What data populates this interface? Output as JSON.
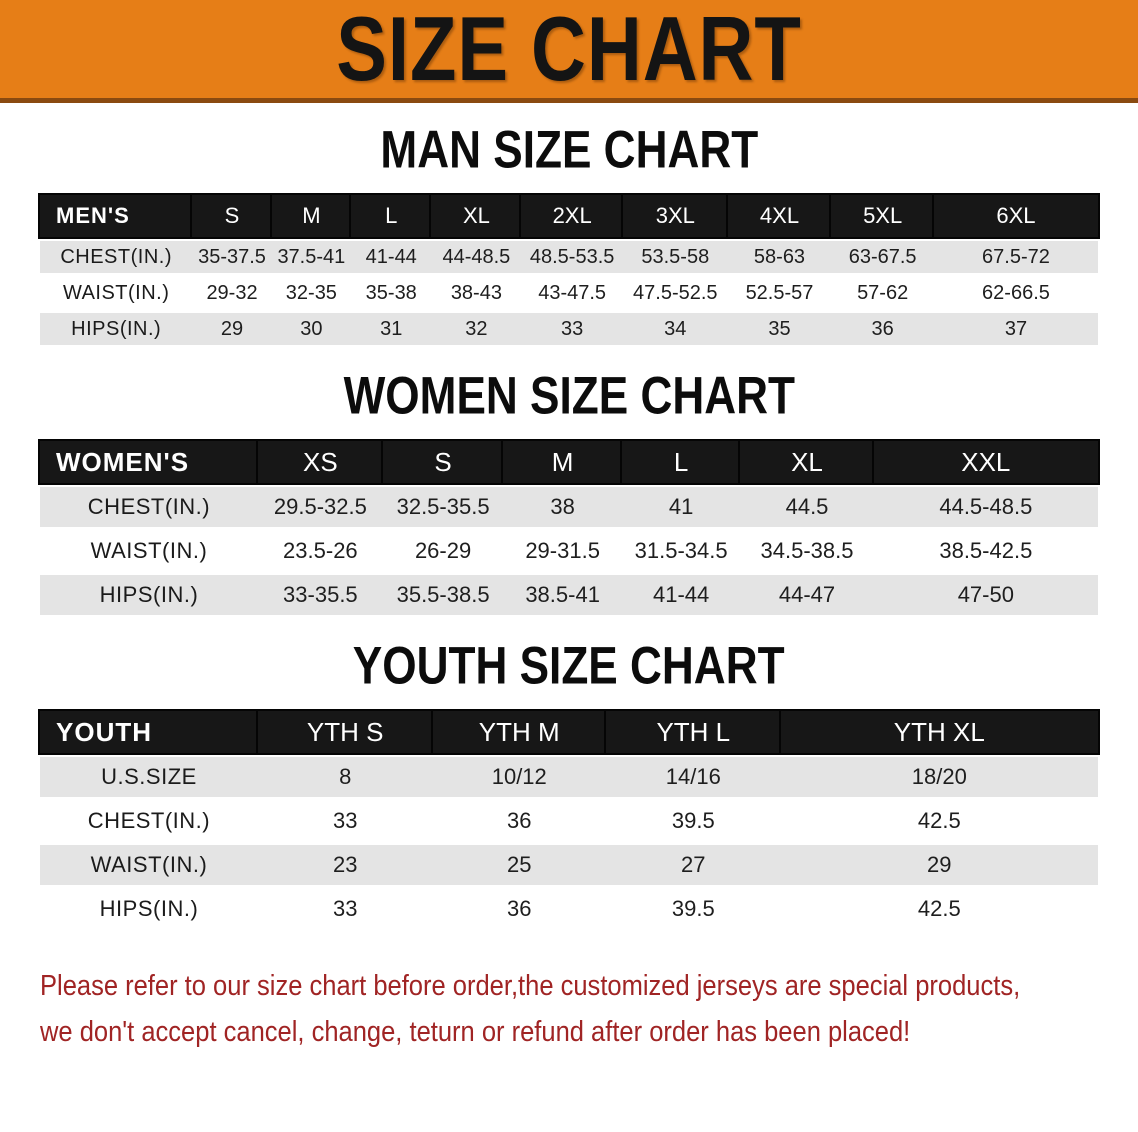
{
  "banner": {
    "title": "SIZE CHART"
  },
  "sections": [
    {
      "heading": "MAN SIZE CHART",
      "table": {
        "header_label": "MEN'S",
        "columns": [
          "S",
          "M",
          "L",
          "XL",
          "2XL",
          "3XL",
          "4XL",
          "5XL",
          "6XL"
        ],
        "rows": [
          {
            "label": "CHEST(IN.)",
            "values": [
              "35-37.5",
              "37.5-41",
              "41-44",
              "44-48.5",
              "48.5-53.5",
              "53.5-58",
              "58-63",
              "63-67.5",
              "67.5-72"
            ]
          },
          {
            "label": "WAIST(IN.)",
            "values": [
              "29-32",
              "32-35",
              "35-38",
              "38-43",
              "43-47.5",
              "47.5-52.5",
              "52.5-57",
              "57-62",
              "62-66.5"
            ]
          },
          {
            "label": "HIPS(IN.)",
            "values": [
              "29",
              "30",
              "31",
              "32",
              "33",
              "34",
              "35",
              "36",
              "37"
            ]
          }
        ]
      }
    },
    {
      "heading": "WOMEN SIZE CHART",
      "table": {
        "header_label": "WOMEN'S",
        "columns": [
          "XS",
          "S",
          "M",
          "L",
          "XL",
          "XXL"
        ],
        "rows": [
          {
            "label": "CHEST(IN.)",
            "values": [
              "29.5-32.5",
              "32.5-35.5",
              "38",
              "41",
              "44.5",
              "44.5-48.5"
            ]
          },
          {
            "label": "WAIST(IN.)",
            "values": [
              "23.5-26",
              "26-29",
              "29-31.5",
              "31.5-34.5",
              "34.5-38.5",
              "38.5-42.5"
            ]
          },
          {
            "label": "HIPS(IN.)",
            "values": [
              "33-35.5",
              "35.5-38.5",
              "38.5-41",
              "41-44",
              "44-47",
              "47-50"
            ]
          }
        ]
      }
    },
    {
      "heading": "YOUTH SIZE CHART",
      "table": {
        "header_label": "YOUTH",
        "columns": [
          "YTH S",
          "YTH M",
          "YTH L",
          "YTH XL"
        ],
        "rows": [
          {
            "label": "U.S.SIZE",
            "values": [
              "8",
              "10/12",
              "14/16",
              "18/20"
            ]
          },
          {
            "label": "CHEST(IN.)",
            "values": [
              "33",
              "36",
              "39.5",
              "42.5"
            ]
          },
          {
            "label": "WAIST(IN.)",
            "values": [
              "23",
              "25",
              "27",
              "29"
            ]
          },
          {
            "label": "HIPS(IN.)",
            "values": [
              "33",
              "36",
              "39.5",
              "42.5"
            ]
          }
        ]
      }
    }
  ],
  "disclaimer": {
    "line1": "Please refer to our size chart before order,the customized jerseys are special products,",
    "line2": "we don't accept cancel, change, teturn or refund after order has been placed!"
  },
  "colors": {
    "banner_bg": "#E67E17",
    "banner_border": "#8a4a10",
    "table_header_bar": "#171717",
    "row_stripe_gray": "#E4E4E4",
    "disclaimer_red": "#A02424"
  }
}
